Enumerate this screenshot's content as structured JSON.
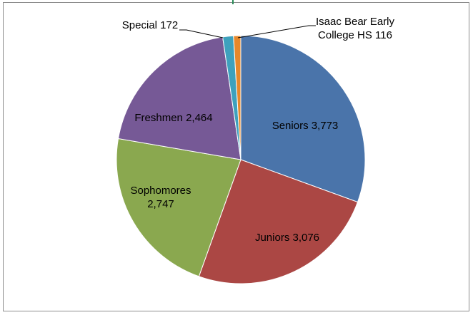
{
  "chart_data": {
    "type": "pie",
    "title": "",
    "slices": [
      {
        "label": "Seniors",
        "value": 3773,
        "value_text": "3,773",
        "color": "#4a74aa"
      },
      {
        "label": "Juniors",
        "value": 3076,
        "value_text": "3,076",
        "color": "#ab4744"
      },
      {
        "label": "Sophomores",
        "value": 2747,
        "value_text": "2,747",
        "color": "#8aa84f"
      },
      {
        "label": "Freshmen",
        "value": 2464,
        "value_text": "2,464",
        "color": "#765996"
      },
      {
        "label": "Special",
        "value": 172,
        "value_text": "172",
        "color": "#3ea1bd"
      },
      {
        "label": "Isaac Bear Early College HS",
        "value": 116,
        "value_text": "116",
        "color": "#e7882b"
      }
    ],
    "start_angle_deg": 0,
    "direction": "clockwise",
    "legend": "none",
    "data_labels": "category-and-value"
  }
}
